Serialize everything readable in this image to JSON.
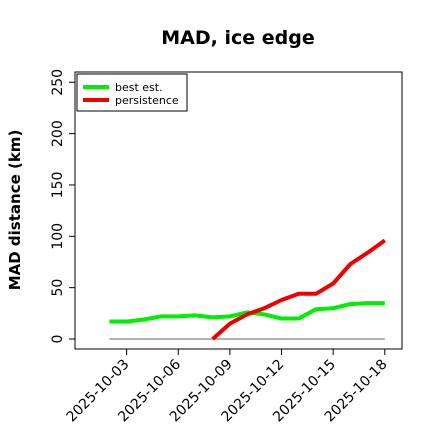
{
  "chart_data": {
    "type": "line",
    "title": "MAD, ice edge",
    "xlabel": "",
    "ylabel": "MAD distance (km)",
    "ylim": [
      0,
      260
    ],
    "yticks": [
      0,
      50,
      100,
      150,
      200,
      250
    ],
    "xlim": [
      "2025-09-30",
      "2025-10-19"
    ],
    "xticks": [
      "2025-10-03",
      "2025-10-06",
      "2025-10-09",
      "2025-10-12",
      "2025-10-15",
      "2025-10-18"
    ],
    "legend_position": "top-left",
    "grid": false,
    "series": [
      {
        "name": "best est.",
        "color": "#00ee00",
        "x": [
          "2025-10-02",
          "2025-10-03",
          "2025-10-04",
          "2025-10-05",
          "2025-10-06",
          "2025-10-07",
          "2025-10-08",
          "2025-10-09",
          "2025-10-10",
          "2025-10-11",
          "2025-10-12",
          "2025-10-13",
          "2025-10-14",
          "2025-10-15",
          "2025-10-16",
          "2025-10-17",
          "2025-10-18"
        ],
        "values": [
          17,
          17,
          19,
          22,
          22,
          23,
          21,
          22,
          26,
          24,
          20,
          20,
          29,
          30,
          34,
          35,
          35
        ]
      },
      {
        "name": "persistence",
        "color": "#ee0000",
        "x": [
          "2025-10-08",
          "2025-10-09",
          "2025-10-10",
          "2025-10-11",
          "2025-10-12",
          "2025-10-13",
          "2025-10-14",
          "2025-10-15",
          "2025-10-16",
          "2025-10-17",
          "2025-10-18"
        ],
        "values": [
          0,
          15,
          24,
          30,
          38,
          44,
          44,
          54,
          73,
          84,
          96
        ]
      },
      {
        "name": "",
        "color": "#808080",
        "x": [
          "2025-10-02",
          "2025-10-18"
        ],
        "values": [
          0,
          0
        ]
      }
    ]
  }
}
